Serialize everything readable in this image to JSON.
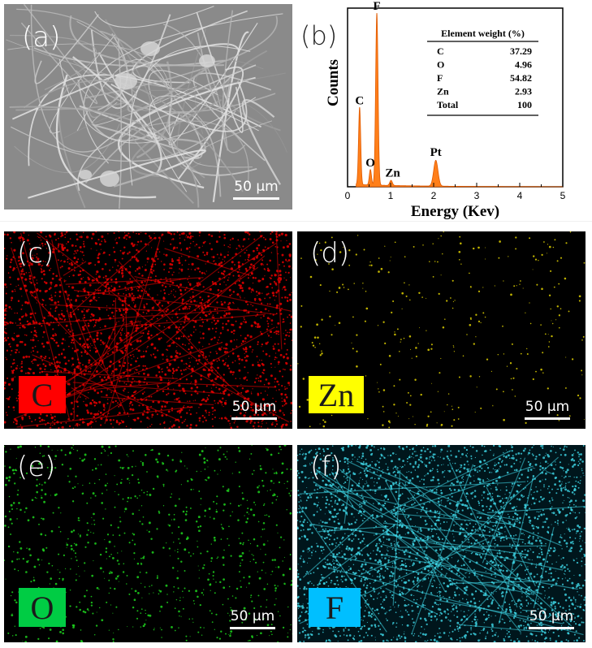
{
  "panels": {
    "a": {
      "label": "(a)",
      "scale": "50 µm"
    },
    "b": {
      "label": "(b)"
    },
    "c": {
      "label": "(c)",
      "element": "C",
      "scale": "50 µm",
      "box_color": "#ff0000",
      "text_color": "#1a1a1a",
      "dot_color": "#e60000"
    },
    "d": {
      "label": "(d)",
      "element": "Zn",
      "scale": "50 µm",
      "box_color": "#ffff00",
      "text_color": "#1a1a1a",
      "dot_color": "#f0e000"
    },
    "e": {
      "label": "(e)",
      "element": "O",
      "scale": "50 µm",
      "box_color": "#00cc44",
      "text_color": "#1a1a1a",
      "dot_color": "#1fe01f"
    },
    "f": {
      "label": "(f)",
      "element": "F",
      "scale": "50 µm",
      "box_color": "#00bfff",
      "text_color": "#1a1a1a",
      "dot_color": "#3fd8e8"
    }
  },
  "chart_data": {
    "type": "area",
    "xlabel": "Energy (Kev)",
    "ylabel": "Counts",
    "xlim": [
      0,
      5
    ],
    "xticks": [
      0,
      1,
      2,
      3,
      4,
      5
    ],
    "fill_color": "#ff7f1a",
    "peaks": [
      {
        "label": "C",
        "x": 0.28,
        "height": 0.45,
        "width": 0.025
      },
      {
        "label": "O",
        "x": 0.53,
        "height": 0.09,
        "width": 0.025
      },
      {
        "label": "F",
        "x": 0.68,
        "height": 1.0,
        "width": 0.028
      },
      {
        "label": "Zn",
        "x": 1.01,
        "height": 0.03,
        "width": 0.03
      },
      {
        "label": "Pt",
        "x": 2.05,
        "height": 0.15,
        "width": 0.05
      }
    ],
    "table": {
      "header": "Element weight (%)",
      "rows": [
        {
          "element": "C",
          "value": "37.29"
        },
        {
          "element": "O",
          "value": "4.96"
        },
        {
          "element": "F",
          "value": "54.82"
        },
        {
          "element": "Zn",
          "value": "2.93"
        },
        {
          "element": "Total",
          "value": "100"
        }
      ]
    }
  }
}
